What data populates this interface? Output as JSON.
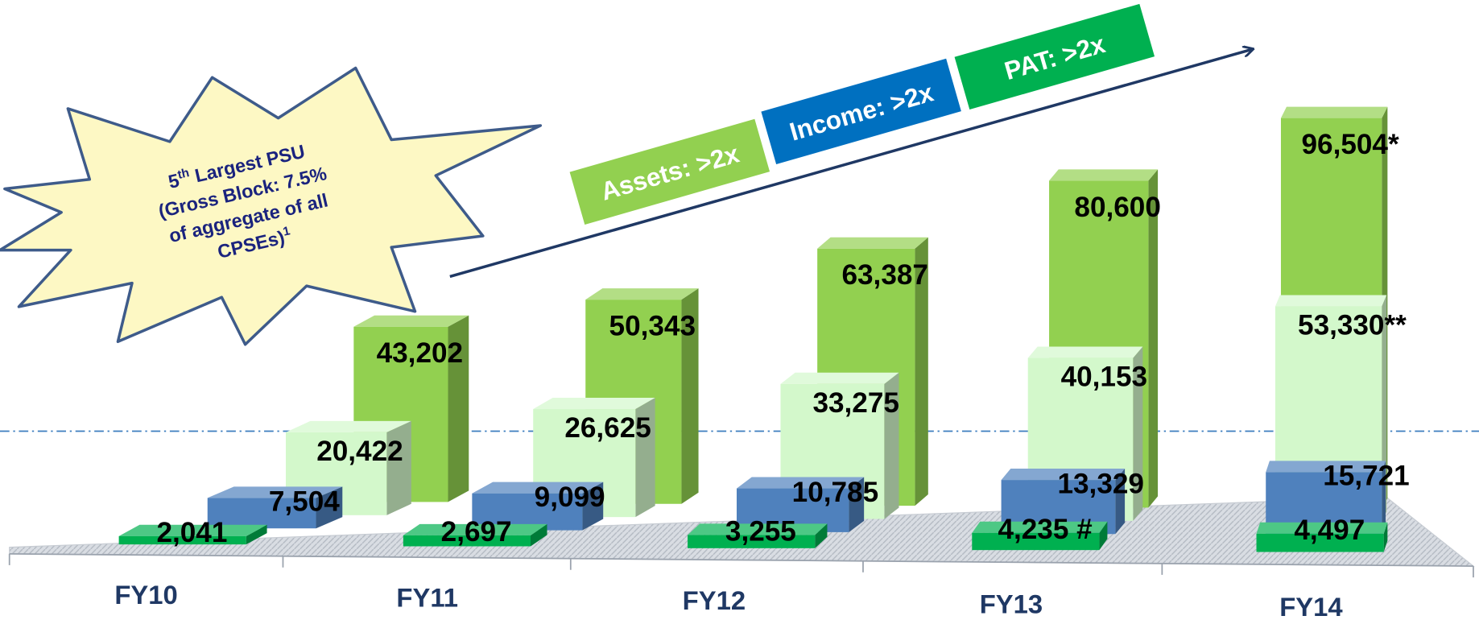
{
  "chart_data": {
    "type": "bar",
    "categories": [
      "FY10",
      "FY11",
      "FY12",
      "FY13",
      "FY14"
    ],
    "series": [
      {
        "color": "#92d050",
        "values": [
          43202,
          50343,
          63387,
          80600,
          96504
        ],
        "value_labels": [
          "43,202",
          "50,343",
          "63,387",
          "80,600",
          "96,504*"
        ]
      },
      {
        "color": "#d3f8cb",
        "values": [
          20422,
          26625,
          33275,
          40153,
          53330
        ],
        "value_labels": [
          "20,422",
          "26,625",
          "33,275",
          "40,153",
          "53,330**"
        ]
      },
      {
        "color": "#4f81bd",
        "values": [
          7504,
          9099,
          10785,
          13329,
          15721
        ],
        "value_labels": [
          "7,504",
          "9,099",
          "10,785",
          "13,329",
          "15,721"
        ]
      },
      {
        "color": "#00b050",
        "values": [
          2041,
          2697,
          3255,
          4235,
          4497
        ],
        "value_labels": [
          "2,041",
          "2,697",
          "3,255",
          "4,235 #",
          "4,497"
        ]
      }
    ],
    "banners": [
      {
        "text": "Assets: >2x",
        "color": "#92d050"
      },
      {
        "text": "Income: >2x",
        "color": "#0070c0"
      },
      {
        "text": "PAT: >2x",
        "color": "#00b050"
      }
    ],
    "burst": {
      "ordinal": "5",
      "ordinal_suffix": "th",
      "lines": [
        " Largest PSU",
        "(Gross Block: 7.5%",
        "of aggregate of all",
        "CPSEs)"
      ],
      "footnote": "1"
    }
  }
}
